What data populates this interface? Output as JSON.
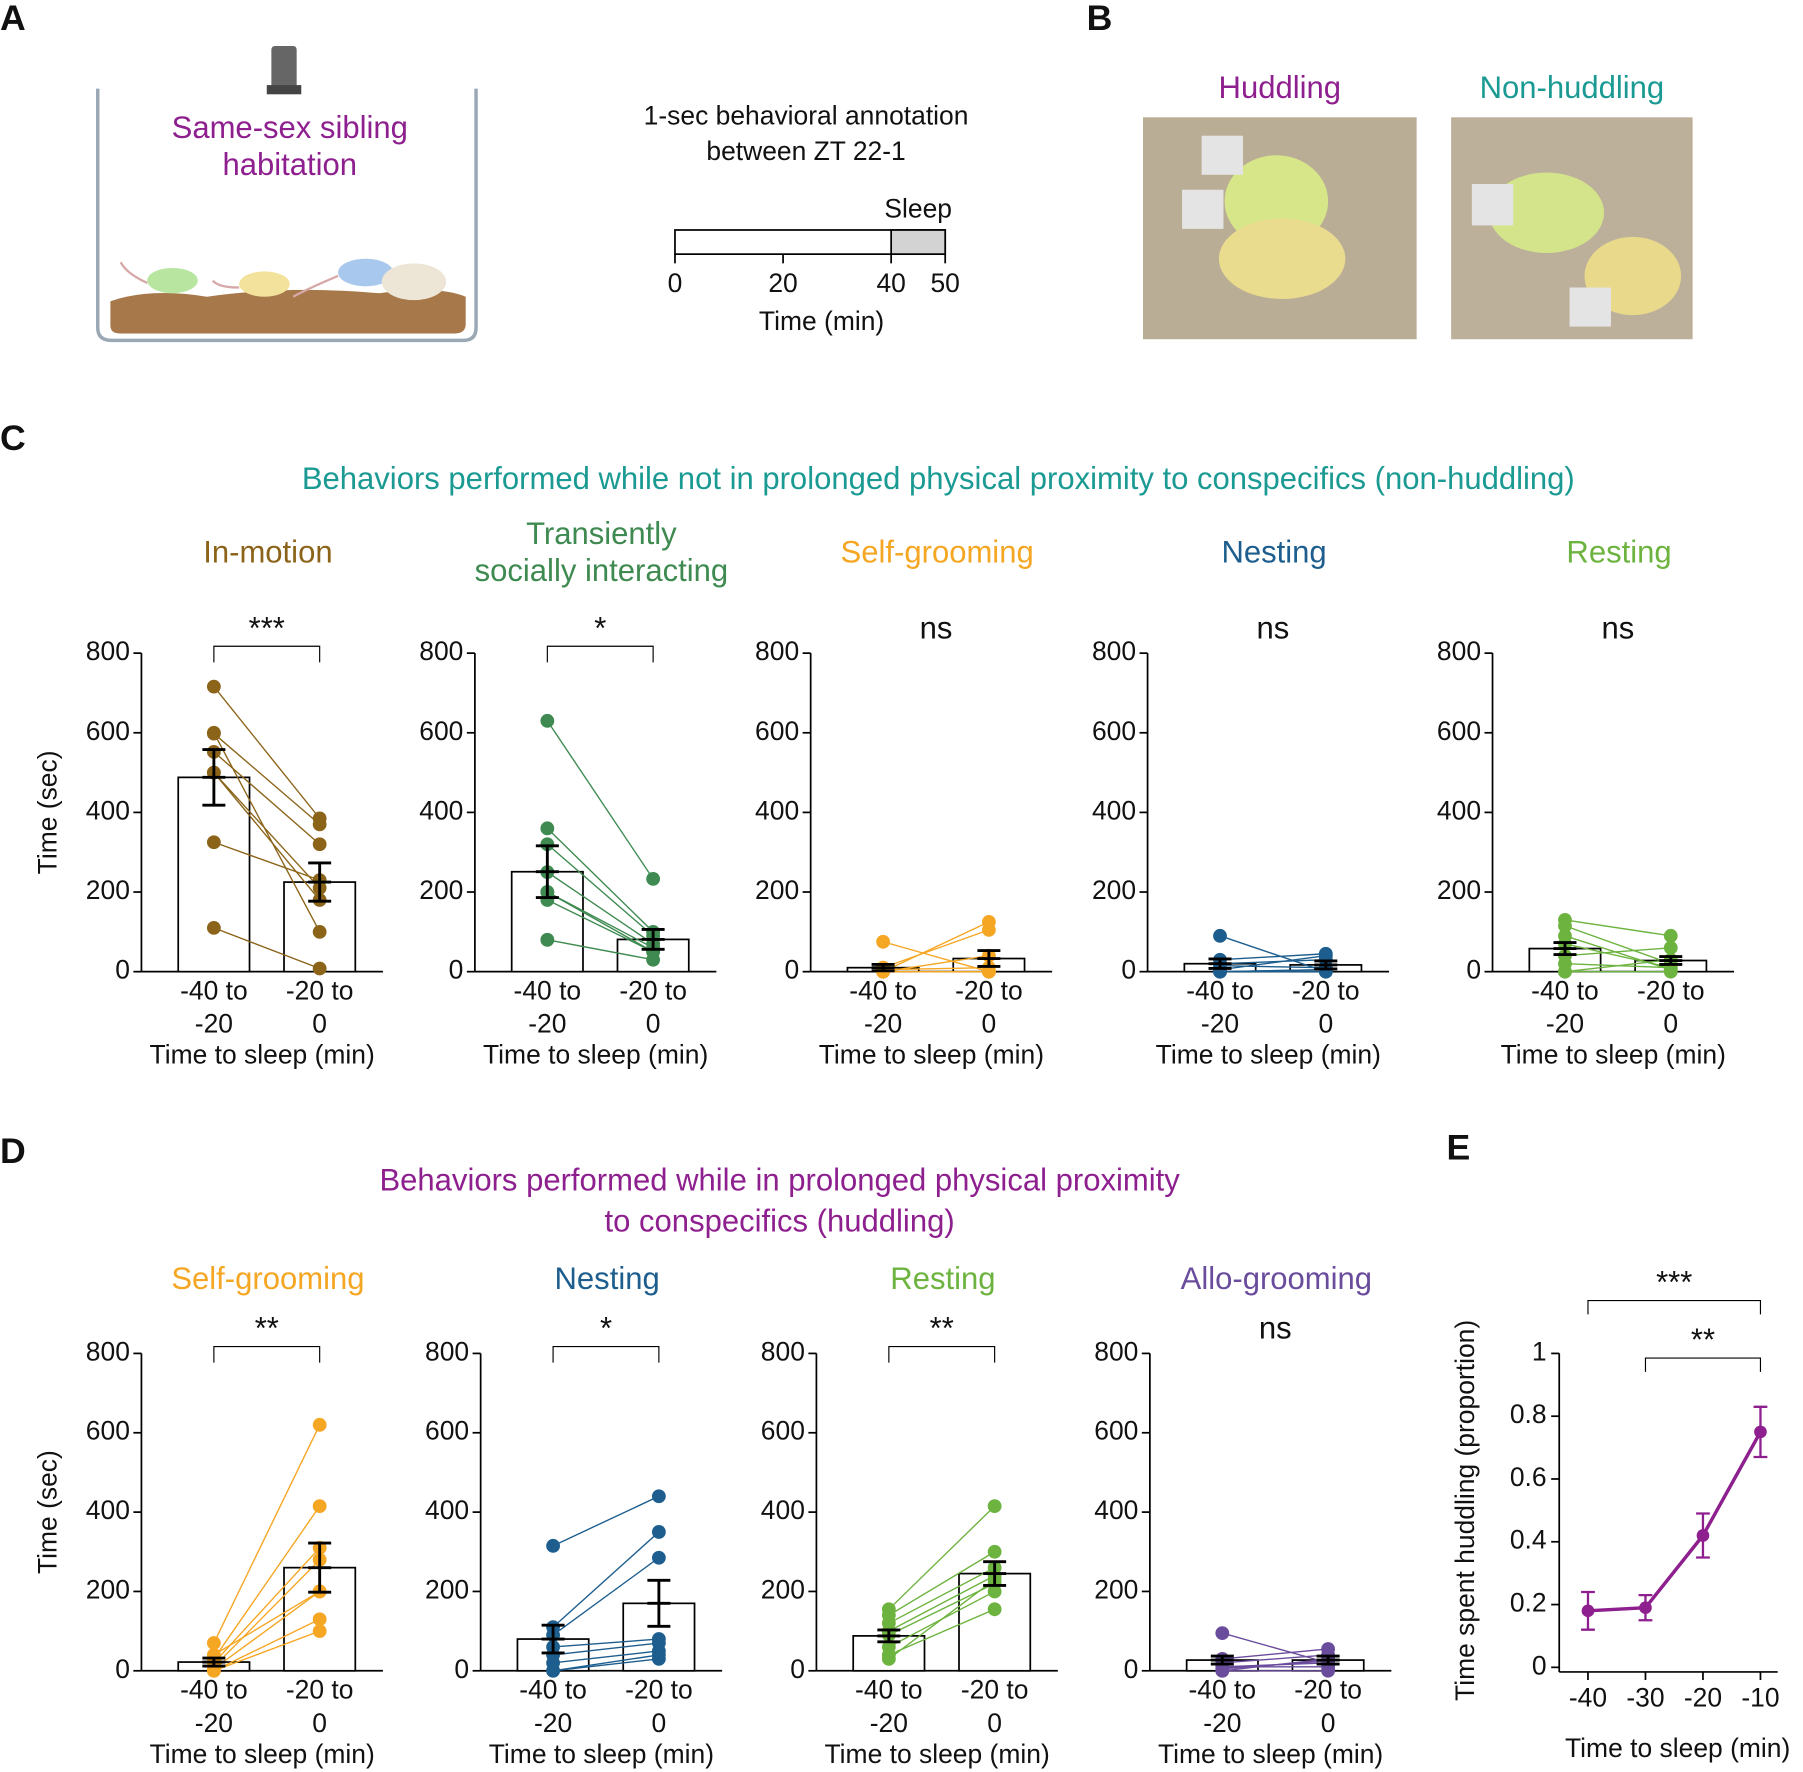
{
  "panel_labels": [
    "A",
    "B",
    "C",
    "D",
    "E"
  ],
  "panel_a": {
    "cage_label": [
      "Same-sex sibling",
      "habitation"
    ],
    "annotation": [
      "1-sec behavioral annotation",
      "between ZT 22-1"
    ],
    "timeline": {
      "xlim": [
        0,
        50
      ],
      "xticks": [
        0,
        20,
        40,
        50
      ],
      "sleep_start": 40,
      "sleep_label": "Sleep",
      "xlabel": "Time (min)"
    }
  },
  "panel_b": {
    "labels": [
      "Huddling",
      "Non-huddling"
    ]
  },
  "section_titles": {
    "c": [
      "Behaviors performed while not in prolonged physical proximity to conspecifics (non-huddling)"
    ],
    "d": [
      "Behaviors performed while in prolonged physical proximity",
      "to conspecifics (huddling)"
    ]
  },
  "chart_data": [
    {
      "type": "paired_bar",
      "title": [
        "In-motion"
      ],
      "color": "#8b6419",
      "categories": [
        [
          "-40 to",
          "-20"
        ],
        [
          "-20 to",
          "0"
        ]
      ],
      "values": [
        488,
        225
      ],
      "errors": [
        70,
        48
      ],
      "subjects": [
        [
          716,
          385
        ],
        [
          598,
          370
        ],
        [
          552,
          320
        ],
        [
          500,
          210
        ],
        [
          325,
          230
        ],
        [
          110,
          8
        ],
        [
          600,
          100
        ],
        [
          500,
          180
        ]
      ],
      "comparison": {
        "label": "***",
        "between": [
          0,
          1
        ]
      },
      "ylim": [
        0,
        800
      ],
      "yticks": [
        0,
        200,
        400,
        600,
        800
      ],
      "xlabel": "Time to sleep (min)",
      "ylabel": "Time (sec)"
    },
    {
      "type": "paired_bar",
      "title": [
        "Transiently",
        "socially interacting"
      ],
      "color": "#3e8a50",
      "categories": [
        [
          "-40 to",
          "-20"
        ],
        [
          "-20 to",
          "0"
        ]
      ],
      "values": [
        251,
        81
      ],
      "errors": [
        65,
        25
      ],
      "subjects": [
        [
          630,
          233
        ],
        [
          360,
          100
        ],
        [
          320,
          90
        ],
        [
          250,
          70
        ],
        [
          200,
          60
        ],
        [
          180,
          50
        ],
        [
          80,
          30
        ],
        [
          200,
          50
        ]
      ],
      "comparison": {
        "label": "*",
        "between": [
          0,
          1
        ]
      },
      "ylim": [
        0,
        800
      ],
      "yticks": [
        0,
        200,
        400,
        600,
        800
      ],
      "xlabel": "Time to sleep (min)"
    },
    {
      "type": "paired_bar",
      "title": [
        "Self-grooming"
      ],
      "color": "#f5a623",
      "categories": [
        [
          "-40 to",
          "-20"
        ],
        [
          "-20 to",
          "0"
        ]
      ],
      "values": [
        10,
        33
      ],
      "errors": [
        8,
        20
      ],
      "subjects": [
        [
          75,
          0
        ],
        [
          0,
          125
        ],
        [
          10,
          105
        ],
        [
          0,
          40
        ],
        [
          5,
          10
        ],
        [
          0,
          0
        ],
        [
          0,
          0
        ],
        [
          0,
          0
        ]
      ],
      "comparison": {
        "label": "ns"
      },
      "ylim": [
        0,
        800
      ],
      "yticks": [
        0,
        200,
        400,
        600,
        800
      ],
      "xlabel": "Time to sleep (min)"
    },
    {
      "type": "paired_bar",
      "title": [
        "Nesting"
      ],
      "color": "#1d5e8e",
      "categories": [
        [
          "-40 to",
          "-20"
        ],
        [
          "-20 to",
          "0"
        ]
      ],
      "values": [
        20,
        17
      ],
      "errors": [
        12,
        10
      ],
      "subjects": [
        [
          90,
          0
        ],
        [
          30,
          45
        ],
        [
          20,
          30
        ],
        [
          15,
          10
        ],
        [
          5,
          40
        ],
        [
          0,
          5
        ],
        [
          0,
          0
        ],
        [
          0,
          5
        ]
      ],
      "comparison": {
        "label": "ns"
      },
      "ylim": [
        0,
        800
      ],
      "yticks": [
        0,
        200,
        400,
        600,
        800
      ],
      "xlabel": "Time to sleep (min)"
    },
    {
      "type": "paired_bar",
      "title": [
        "Resting"
      ],
      "color": "#6db33f",
      "categories": [
        [
          "-40 to",
          "-20"
        ],
        [
          "-20 to",
          "0"
        ]
      ],
      "values": [
        58,
        28
      ],
      "errors": [
        15,
        10
      ],
      "subjects": [
        [
          130,
          90
        ],
        [
          115,
          20
        ],
        [
          90,
          5
        ],
        [
          70,
          10
        ],
        [
          40,
          60
        ],
        [
          20,
          10
        ],
        [
          0,
          30
        ],
        [
          0,
          0
        ]
      ],
      "comparison": {
        "label": "ns"
      },
      "ylim": [
        0,
        800
      ],
      "yticks": [
        0,
        200,
        400,
        600,
        800
      ],
      "xlabel": "Time to sleep (min)"
    },
    {
      "type": "paired_bar",
      "title": [
        "Self-grooming"
      ],
      "color": "#f5a623",
      "categories": [
        [
          "-40 to",
          "-20"
        ],
        [
          "-20 to",
          "0"
        ]
      ],
      "values": [
        22,
        260
      ],
      "errors": [
        10,
        62
      ],
      "subjects": [
        [
          70,
          620
        ],
        [
          30,
          415
        ],
        [
          20,
          310
        ],
        [
          10,
          280
        ],
        [
          5,
          200
        ],
        [
          0,
          100
        ],
        [
          0,
          130
        ],
        [
          40,
          200
        ]
      ],
      "comparison": {
        "label": "**",
        "between": [
          0,
          1
        ]
      },
      "ylim": [
        0,
        800
      ],
      "yticks": [
        0,
        200,
        400,
        600,
        800
      ],
      "xlabel": "Time to sleep (min)",
      "ylabel": "Time (sec)"
    },
    {
      "type": "paired_bar",
      "title": [
        "Nesting"
      ],
      "color": "#1d5e8e",
      "categories": [
        [
          "-40 to",
          "-20"
        ],
        [
          "-20 to",
          "0"
        ]
      ],
      "values": [
        80,
        170
      ],
      "errors": [
        35,
        58
      ],
      "subjects": [
        [
          315,
          440
        ],
        [
          110,
          350
        ],
        [
          90,
          285
        ],
        [
          60,
          80
        ],
        [
          40,
          70
        ],
        [
          20,
          50
        ],
        [
          0,
          40
        ],
        [
          0,
          30
        ]
      ],
      "comparison": {
        "label": "*",
        "between": [
          0,
          1
        ]
      },
      "ylim": [
        0,
        800
      ],
      "yticks": [
        0,
        200,
        400,
        600,
        800
      ],
      "xlabel": "Time to sleep (min)"
    },
    {
      "type": "paired_bar",
      "title": [
        "Resting"
      ],
      "color": "#6db33f",
      "categories": [
        [
          "-40 to",
          "-20"
        ],
        [
          "-20 to",
          "0"
        ]
      ],
      "values": [
        88,
        245
      ],
      "errors": [
        15,
        30
      ],
      "subjects": [
        [
          155,
          415
        ],
        [
          140,
          300
        ],
        [
          120,
          260
        ],
        [
          100,
          240
        ],
        [
          90,
          220
        ],
        [
          60,
          200
        ],
        [
          40,
          155
        ],
        [
          30,
          230
        ]
      ],
      "comparison": {
        "label": "**",
        "between": [
          0,
          1
        ]
      },
      "ylim": [
        0,
        800
      ],
      "yticks": [
        0,
        200,
        400,
        600,
        800
      ],
      "xlabel": "Time to sleep (min)"
    },
    {
      "type": "paired_bar",
      "title": [
        "Allo-grooming"
      ],
      "color": "#6a4c9c",
      "categories": [
        [
          "-40 to",
          "-20"
        ],
        [
          "-20 to",
          "0"
        ]
      ],
      "values": [
        27,
        27
      ],
      "errors": [
        10,
        10
      ],
      "subjects": [
        [
          95,
          20
        ],
        [
          30,
          55
        ],
        [
          20,
          40
        ],
        [
          10,
          10
        ],
        [
          0,
          30
        ],
        [
          0,
          0
        ],
        [
          10,
          20
        ],
        [
          5,
          25
        ]
      ],
      "comparison": {
        "label": "ns"
      },
      "ylim": [
        0,
        800
      ],
      "yticks": [
        0,
        200,
        400,
        600,
        800
      ],
      "xlabel": "Time to sleep (min)"
    },
    {
      "type": "line",
      "color": "#8e1f8e",
      "x": [
        -40,
        -30,
        -20,
        -10
      ],
      "values": [
        0.18,
        0.19,
        0.42,
        0.75
      ],
      "errors": [
        0.06,
        0.04,
        0.07,
        0.08
      ],
      "xlim": [
        -45,
        -5
      ],
      "xticks": [
        -40,
        -30,
        -20,
        -10
      ],
      "ylim": [
        0,
        1
      ],
      "yticks": [
        0,
        0.2,
        0.4,
        0.6,
        0.8,
        1
      ],
      "xlabel": "Time to sleep (min)",
      "ylabel": "Time spent huddling (proportion)",
      "comparisons": [
        {
          "label": "***",
          "from": -40,
          "to": -10
        },
        {
          "label": "**",
          "from": -30,
          "to": -10
        }
      ]
    }
  ]
}
